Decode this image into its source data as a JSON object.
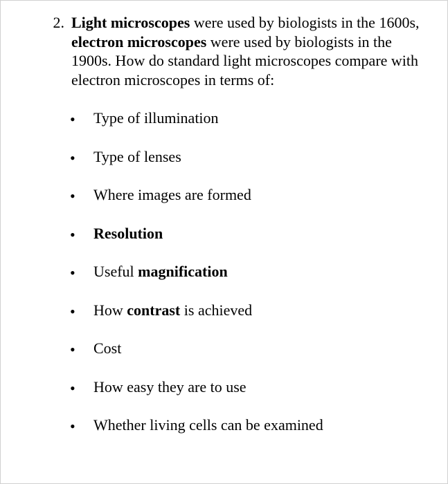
{
  "question": {
    "number": "2.",
    "segments": [
      {
        "text": "Light microscopes",
        "bold": true
      },
      {
        "text": " were used by biologists in the 1600s, ",
        "bold": false
      },
      {
        "text": "electron microscopes",
        "bold": true
      },
      {
        "text": " were used by biologists in the 1900s. How do standard light microscopes compare with electron microscopes in terms of:",
        "bold": false
      }
    ]
  },
  "bullets": [
    {
      "segments": [
        {
          "text": "Type of illumination",
          "bold": false
        }
      ]
    },
    {
      "segments": [
        {
          "text": "Type of lenses",
          "bold": false
        }
      ]
    },
    {
      "segments": [
        {
          "text": "Where images are formed",
          "bold": false
        }
      ]
    },
    {
      "segments": [
        {
          "text": "Resolution",
          "bold": true
        }
      ]
    },
    {
      "segments": [
        {
          "text": "Useful ",
          "bold": false
        },
        {
          "text": "magnification",
          "bold": true
        }
      ]
    },
    {
      "segments": [
        {
          "text": "How ",
          "bold": false
        },
        {
          "text": "contrast",
          "bold": true
        },
        {
          "text": " is achieved",
          "bold": false
        }
      ]
    },
    {
      "segments": [
        {
          "text": "Cost",
          "bold": false
        }
      ]
    },
    {
      "segments": [
        {
          "text": "How easy they are to use",
          "bold": false
        }
      ]
    },
    {
      "segments": [
        {
          "text": "Whether living cells can be examined",
          "bold": false
        }
      ]
    }
  ],
  "bullet_glyph": "•"
}
